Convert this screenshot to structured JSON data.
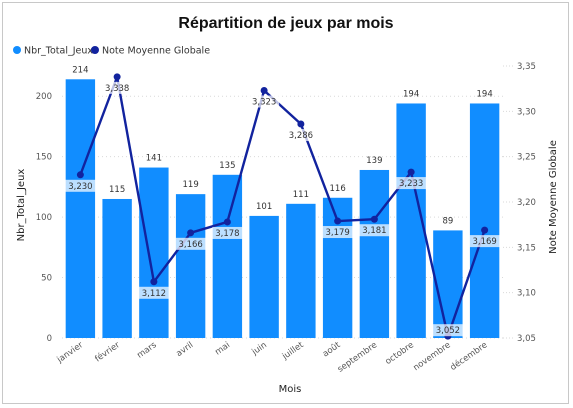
{
  "chart_data": {
    "type": "bar",
    "title": "Répartition de jeux par mois",
    "xlabel": "Mois",
    "ylabel": "Nbr_Total_Jeux",
    "y2label": "Note Moyenne Globale",
    "ylim": [
      0,
      225
    ],
    "y2lim": [
      3.05,
      3.35
    ],
    "yticks": [
      0,
      50,
      100,
      150,
      200
    ],
    "y2ticks": [
      "3,05",
      "3,10",
      "3,15",
      "3,20",
      "3,25",
      "3,30",
      "3,35"
    ],
    "y2tick_values": [
      3.05,
      3.1,
      3.15,
      3.2,
      3.25,
      3.3,
      3.35
    ],
    "legend_position": "top-left",
    "grid": true,
    "categories": [
      "janvier",
      "février",
      "mars",
      "avril",
      "mai",
      "juin",
      "juillet",
      "août",
      "septembre",
      "octobre",
      "novembre",
      "décembre"
    ],
    "series": [
      {
        "name": "Nbr_Total_Jeux",
        "type": "bar",
        "axis": "left",
        "color": "#118DFF",
        "values": [
          214,
          115,
          141,
          119,
          135,
          101,
          111,
          116,
          139,
          194,
          89,
          194
        ],
        "labels": [
          "214",
          "115",
          "141",
          "119",
          "135",
          "101",
          "111",
          "116",
          "139",
          "194",
          "89",
          "194"
        ]
      },
      {
        "name": "Note Moyenne Globale",
        "type": "line",
        "axis": "right",
        "color": "#12239E",
        "values": [
          3.23,
          3.338,
          3.112,
          3.166,
          3.178,
          3.323,
          3.286,
          3.179,
          3.181,
          3.233,
          3.052,
          3.169
        ],
        "labels": [
          "3,230",
          "3,338",
          "3,112",
          "3,166",
          "3,178",
          "3,323",
          "3,286",
          "3,179",
          "3,181",
          "3,233",
          "3,052",
          "3,169"
        ]
      }
    ]
  }
}
